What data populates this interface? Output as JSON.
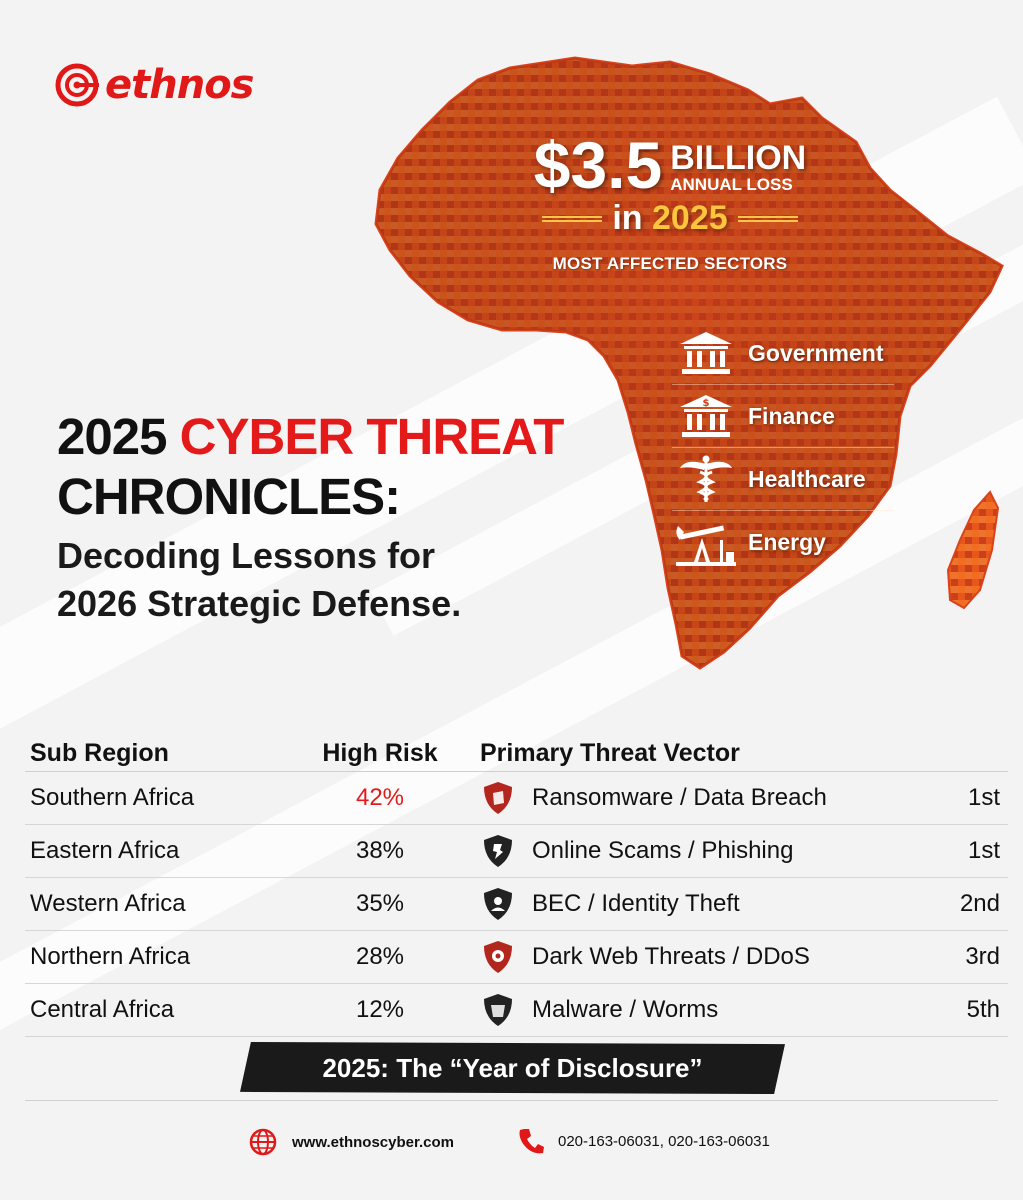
{
  "brand": {
    "name": "ethnos",
    "color": "#e01818"
  },
  "stat": {
    "amount": "$3.5",
    "unit": "BILLION",
    "subtitle": "ANNUAL LOSS",
    "year_prefix": "in",
    "year": "2025",
    "sectors_title": "MOST AFFECTED SECTORS"
  },
  "sectors": [
    {
      "label": "Government",
      "icon": "government-building-icon"
    },
    {
      "label": "Finance",
      "icon": "bank-icon"
    },
    {
      "label": "Healthcare",
      "icon": "caduceus-icon"
    },
    {
      "label": "Energy",
      "icon": "oil-pump-icon"
    }
  ],
  "headline": {
    "line1_prefix": "2025",
    "line1_highlight": "CYBER THREAT",
    "line2": "CHRONICLES:",
    "line3": "Decoding Lessons for",
    "line4": "2026 Strategic Defense."
  },
  "table": {
    "headers": {
      "region": "Sub Region",
      "risk": "High Risk",
      "vector": "Primary Threat Vector"
    },
    "rows": [
      {
        "region": "Southern Africa",
        "risk": "42%",
        "vector": "Ransomware / Data Breach",
        "rank": "1st",
        "icon": "ransomware-shield-icon",
        "icon_color": "#b3261e"
      },
      {
        "region": "Eastern Africa",
        "risk": "38%",
        "vector": "Online Scams / Phishing",
        "rank": "1st",
        "icon": "phishing-shield-icon",
        "icon_color": "#222222"
      },
      {
        "region": "Western Africa",
        "risk": "35%",
        "vector": "BEC / Identity Theft",
        "rank": "2nd",
        "icon": "identity-shield-icon",
        "icon_color": "#222222"
      },
      {
        "region": "Northern Africa",
        "risk": "28%",
        "vector": "Dark Web Threats / DDoS",
        "rank": "3rd",
        "icon": "darkweb-shield-icon",
        "icon_color": "#b3261e"
      },
      {
        "region": "Central Africa",
        "risk": "12%",
        "vector": "Malware / Worms",
        "rank": "5th",
        "icon": "malware-shield-icon",
        "icon_color": "#222222"
      }
    ]
  },
  "banner": "2025:  The “Year of Disclosure”",
  "footer": {
    "website": "www.ethnoscyber.com",
    "phones": "020-163-06031,  020-163-06031"
  },
  "colors": {
    "accent": "#e41a1a",
    "gold": "#ffc53d",
    "map": "#e2541c"
  }
}
